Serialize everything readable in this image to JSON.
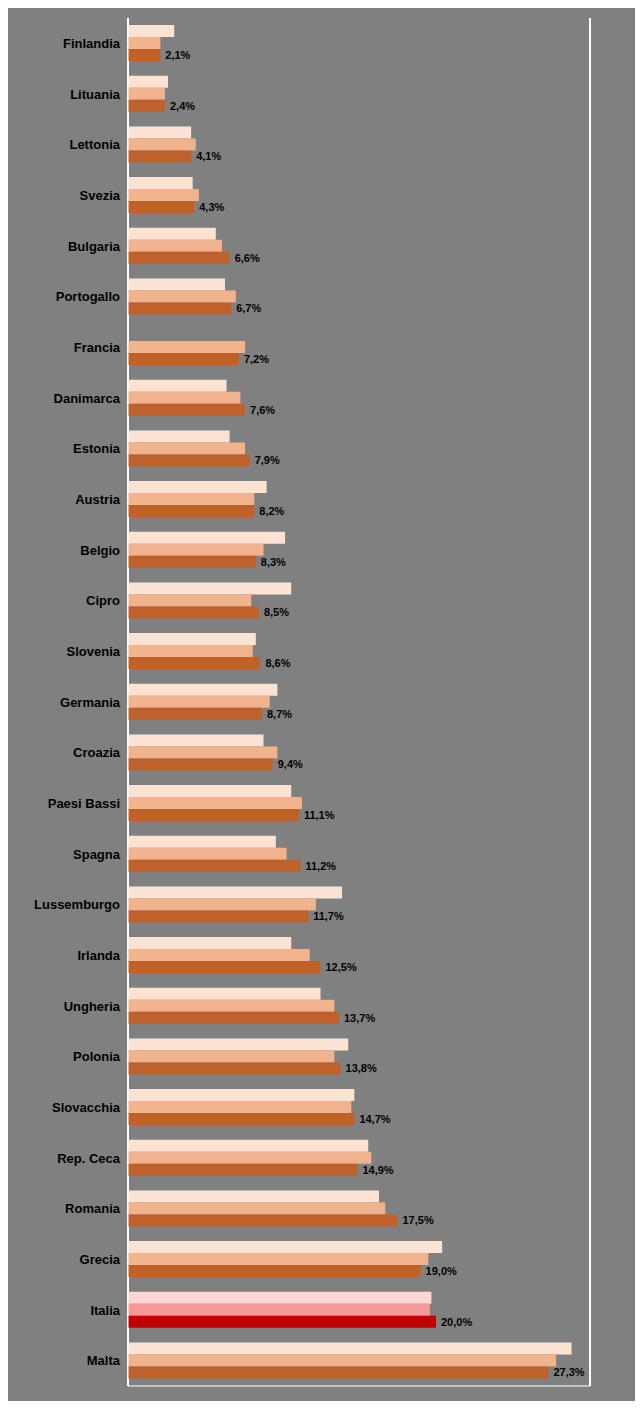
{
  "chart_data": {
    "type": "bar",
    "orientation": "horizontal",
    "grid": true,
    "tick_labels": "y",
    "xlim": [
      0,
      30
    ],
    "xticks": [
      0,
      5,
      10,
      15,
      20,
      25,
      30
    ],
    "categories": [
      "Finlandia",
      "Lituania",
      "Lettonia",
      "Svezia",
      "Bulgaria",
      "Portogallo",
      "Francia",
      "Danimarca",
      "Estonia",
      "Austria",
      "Belgio",
      "Cipro",
      "Slovenia",
      "Germania",
      "Croazia",
      "Paesi Bassi",
      "Spagna",
      "Lussemburgo",
      "Irlanda",
      "Ungheria",
      "Polonia",
      "Slovacchia",
      "Rep. Ceca",
      "Romania",
      "Grecia",
      "Italia",
      "Malta"
    ],
    "series": [
      {
        "color": "#FBE3D3",
        "colors": [
          "#FBE3D3",
          "#FBE3D3",
          "#FBE3D3",
          "#FBE3D3",
          "#FBE3D3",
          "#FBE3D3",
          "#FBE3D3",
          "#FBE3D3",
          "#FBE3D3",
          "#FBE3D3",
          "#FBE3D3",
          "#FBE3D3",
          "#FBE3D3",
          "#FBE3D3",
          "#FBE3D3",
          "#FBE3D3",
          "#FBE3D3",
          "#FBE3D3",
          "#FBE3D3",
          "#FBE3D3",
          "#FBE3D3",
          "#FBE3D3",
          "#FBE3D3",
          "#FBE3D3",
          "#FBE3D3",
          "#FFD6D6",
          "#FBE3D3"
        ],
        "values": [
          3.0,
          2.6,
          4.1,
          4.2,
          5.7,
          6.3,
          null,
          6.4,
          6.6,
          9.0,
          10.2,
          10.6,
          8.3,
          9.7,
          8.8,
          10.6,
          9.6,
          13.9,
          10.6,
          12.5,
          14.3,
          14.7,
          15.6,
          16.3,
          20.4,
          19.7,
          28.8
        ]
      },
      {
        "color": "#F0B38E",
        "colors": [
          "#F0B38E",
          "#F0B38E",
          "#F0B38E",
          "#F0B38E",
          "#F0B38E",
          "#F0B38E",
          "#F0B38E",
          "#F0B38E",
          "#F0B38E",
          "#F0B38E",
          "#F0B38E",
          "#F0B38E",
          "#F0B38E",
          "#F0B38E",
          "#F0B38E",
          "#F0B38E",
          "#F0B38E",
          "#F0B38E",
          "#F0B38E",
          "#F0B38E",
          "#F0B38E",
          "#F0B38E",
          "#F0B38E",
          "#F0B38E",
          "#F0B38E",
          "#F49A9A",
          "#F0B38E"
        ],
        "values": [
          2.1,
          2.4,
          4.4,
          4.6,
          6.1,
          7.0,
          7.6,
          7.3,
          7.6,
          8.2,
          8.8,
          8.0,
          8.1,
          9.2,
          9.7,
          11.3,
          10.3,
          12.2,
          11.8,
          13.4,
          13.4,
          14.5,
          15.8,
          16.7,
          19.5,
          19.6,
          27.8
        ]
      },
      {
        "color": "#C0612B",
        "colors": [
          "#C0612B",
          "#C0612B",
          "#C0612B",
          "#C0612B",
          "#C0612B",
          "#C0612B",
          "#C0612B",
          "#C0612B",
          "#C0612B",
          "#C0612B",
          "#C0612B",
          "#C0612B",
          "#C0612B",
          "#C0612B",
          "#C0612B",
          "#C0612B",
          "#C0612B",
          "#C0612B",
          "#C0612B",
          "#C0612B",
          "#C0612B",
          "#C0612B",
          "#C0612B",
          "#C0612B",
          "#C0612B",
          "#C00000",
          "#C0612B"
        ],
        "data_labels": true,
        "values": [
          2.1,
          2.4,
          4.1,
          4.3,
          6.6,
          6.7,
          7.2,
          7.6,
          7.9,
          8.2,
          8.3,
          8.5,
          8.6,
          8.7,
          9.4,
          11.1,
          11.2,
          11.7,
          12.5,
          13.7,
          13.8,
          14.7,
          14.9,
          17.5,
          19.0,
          20.0,
          27.3
        ],
        "value_labels": [
          "2,1%",
          "2,4%",
          "4,1%",
          "4,3%",
          "6,6%",
          "6,7%",
          "7,2%",
          "7,6%",
          "7,9%",
          "8,2%",
          "8,3%",
          "8,5%",
          "8,6%",
          "8,7%",
          "9,4%",
          "11,1%",
          "11,2%",
          "11,7%",
          "12,5%",
          "13,7%",
          "13,8%",
          "14,7%",
          "14,9%",
          "17,5%",
          "19,0%",
          "20,0%",
          "27,3%"
        ]
      }
    ]
  }
}
